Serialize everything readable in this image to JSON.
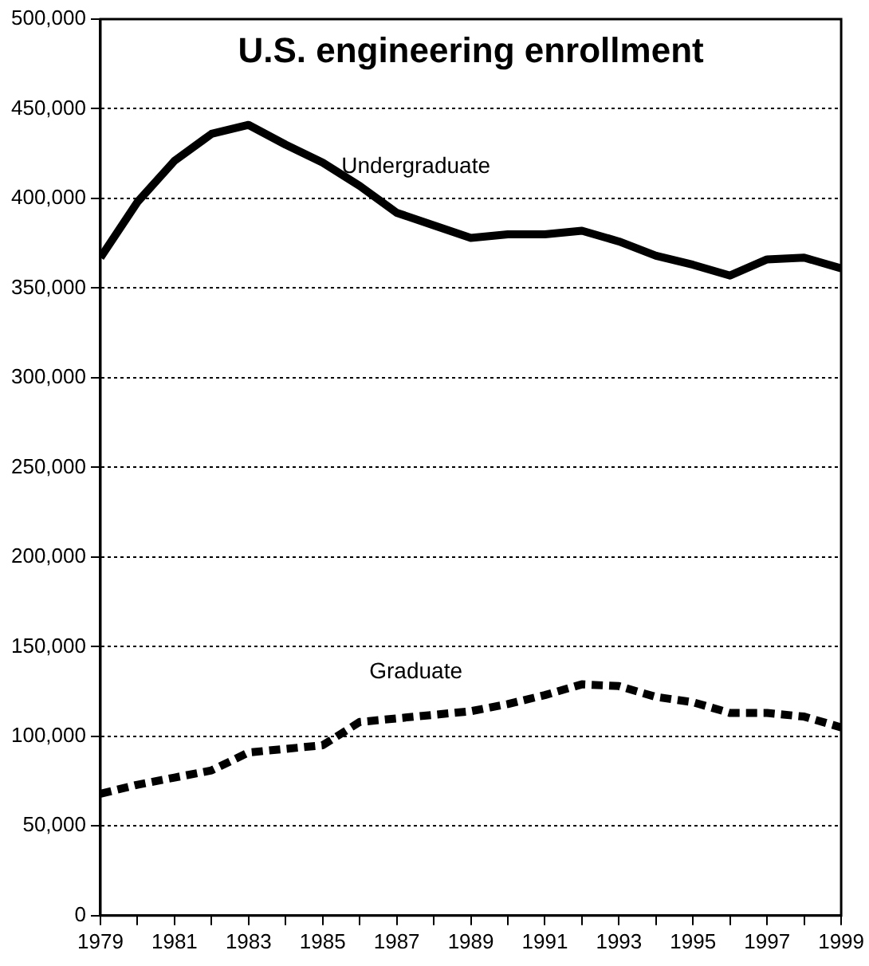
{
  "chart_data": {
    "type": "line",
    "title": "U.S. engineering enrollment",
    "x": [
      1979,
      1980,
      1981,
      1982,
      1983,
      1984,
      1985,
      1986,
      1987,
      1988,
      1989,
      1990,
      1991,
      1992,
      1993,
      1994,
      1995,
      1996,
      1997,
      1998,
      1999
    ],
    "series": [
      {
        "name": "Undergraduate",
        "color": "#000000",
        "line_style": "solid",
        "values": [
          367000,
          398000,
          421000,
          436000,
          441000,
          430000,
          420000,
          407000,
          392000,
          385000,
          378000,
          380000,
          380000,
          382000,
          376000,
          368000,
          363000,
          357000,
          366000,
          367000,
          361000
        ]
      },
      {
        "name": "Graduate",
        "color": "#000000",
        "line_style": "dashed",
        "values": [
          68000,
          73000,
          77000,
          81000,
          91000,
          93000,
          95000,
          108000,
          110000,
          112000,
          114000,
          118000,
          123000,
          129000,
          128000,
          122000,
          119000,
          113000,
          113000,
          111000,
          105000
        ]
      }
    ],
    "xlim": [
      1979,
      1999
    ],
    "xticks": [
      1979,
      {
        "value": 1980,
        "label": null
      },
      1981,
      {
        "value": 1982,
        "label": null
      },
      1983,
      {
        "value": 1984,
        "label": null
      },
      1985,
      {
        "value": 1986,
        "label": null
      },
      1987,
      {
        "value": 1988,
        "label": null
      },
      1989,
      {
        "value": 1990,
        "label": null
      },
      1991,
      {
        "value": 1992,
        "label": null
      },
      1993,
      {
        "value": 1994,
        "label": null
      },
      1995,
      {
        "value": 1996,
        "label": null
      },
      1997,
      {
        "value": 1998,
        "label": null
      },
      1999
    ],
    "ylim": [
      0,
      500000
    ],
    "yticks": [
      0,
      {
        "value": 50000,
        "label": "50,000"
      },
      {
        "value": 100000,
        "label": "100,000"
      },
      {
        "value": 150000,
        "label": "150,000"
      },
      {
        "value": 200000,
        "label": "200,000"
      },
      {
        "value": 250000,
        "label": "250,000"
      },
      {
        "value": 300000,
        "label": "300,000"
      },
      {
        "value": 350000,
        "label": "350,000"
      },
      {
        "value": 400000,
        "label": "400,000"
      },
      {
        "value": 450000,
        "label": "450,000"
      },
      {
        "value": 500000,
        "label": "500,000"
      }
    ],
    "grid": "y",
    "legend": false,
    "marker": "none"
  }
}
